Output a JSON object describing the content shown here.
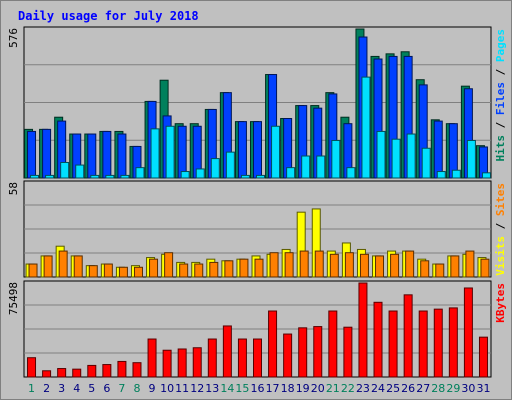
{
  "chart_data": {
    "type": "bar",
    "title": "Daily usage for July 2018",
    "categories": [
      "1",
      "2",
      "3",
      "4",
      "5",
      "6",
      "7",
      "8",
      "9",
      "10",
      "11",
      "12",
      "13",
      "14",
      "15",
      "16",
      "17",
      "18",
      "19",
      "20",
      "21",
      "22",
      "23",
      "24",
      "25",
      "26",
      "27",
      "28",
      "29",
      "30",
      "31"
    ],
    "weekend_days": [
      1,
      7,
      8,
      14,
      15,
      21,
      22,
      28,
      29
    ],
    "panels": [
      {
        "ylabels": [
          "Hits",
          "Files",
          "Pages"
        ],
        "ymax_label": "576",
        "ylim": [
          0,
          576
        ],
        "series": [
          {
            "name": "Hits",
            "color": "#00805c",
            "values": [
              188,
              188,
              235,
              170,
              170,
              180,
              180,
              122,
              296,
              378,
              210,
              210,
              265,
              330,
              218,
              218,
              400,
              230,
              280,
              280,
              330,
              235,
              576,
              470,
              480,
              488,
              380,
              225,
              210,
              355,
              125
            ]
          },
          {
            "name": "Files",
            "color": "#0040ff",
            "values": [
              180,
              188,
              220,
              170,
              170,
              180,
              170,
              122,
              296,
              240,
              200,
              200,
              265,
              330,
              218,
              218,
              400,
              230,
              280,
              270,
              325,
              210,
              545,
              460,
              470,
              470,
              360,
              220,
              210,
              345,
              120
            ]
          },
          {
            "name": "Pages",
            "color": "#00e0ff",
            "values": [
              10,
              10,
              60,
              50,
              10,
              10,
              10,
              40,
              190,
              200,
              25,
              35,
              75,
              100,
              10,
              10,
              200,
              40,
              85,
              85,
              145,
              40,
              390,
              180,
              150,
              170,
              115,
              25,
              30,
              145,
              20
            ]
          }
        ]
      },
      {
        "ylabels": [
          "Visits",
          "Sites"
        ],
        "ymax_label": "58",
        "ylim": [
          0,
          58
        ],
        "series": [
          {
            "name": "Visits",
            "color": "#ffff00",
            "values": [
              8,
              13,
              19,
              13,
              7,
              8,
              6,
              7,
              12,
              14,
              9,
              9,
              11,
              10,
              11,
              13,
              14,
              17,
              40,
              42,
              16,
              21,
              17,
              13,
              16,
              16,
              11,
              8,
              13,
              14,
              12
            ]
          },
          {
            "name": "Sites",
            "color": "#ff8000",
            "values": [
              8,
              13,
              16,
              13,
              7,
              8,
              6,
              6,
              11,
              15,
              8,
              8,
              9,
              10,
              11,
              11,
              15,
              15,
              16,
              16,
              14,
              15,
              14,
              13,
              14,
              16,
              10,
              8,
              13,
              16,
              11
            ]
          }
        ]
      },
      {
        "ylabels": [
          "KBytes"
        ],
        "ymax_label": "75498",
        "ylim": [
          0,
          75498
        ],
        "series": [
          {
            "name": "KBytes",
            "color": "#ff0000",
            "values": [
              15500,
              5000,
              6800,
              6300,
              9300,
              10000,
              12500,
              11500,
              30500,
              21500,
              22500,
              23500,
              30500,
              41000,
              30500,
              30500,
              53000,
              34500,
              39500,
              40500,
              53000,
              40000,
              75498,
              60000,
              53000,
              66000,
              53000,
              54500,
              55500,
              71500,
              32000
            ]
          }
        ]
      }
    ]
  }
}
